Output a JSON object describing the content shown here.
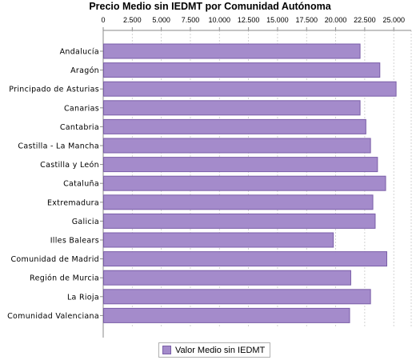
{
  "chart_data": {
    "type": "bar",
    "orientation": "horizontal",
    "title": "Precio Medio sin IEDMT por Comunidad Autónoma",
    "xlabel": "",
    "ylabel": "",
    "xlim": [
      0,
      26500
    ],
    "x_ticks": [
      0,
      2500,
      5000,
      7500,
      10000,
      12500,
      15000,
      17500,
      20000,
      22500,
      25000
    ],
    "x_tick_labels": [
      "0",
      "2.500",
      "5.000",
      "7.500",
      "10.000",
      "12.500",
      "15.000",
      "17.500",
      "20.000",
      "22.500",
      "25.000"
    ],
    "x_axis_position": "top",
    "grid": true,
    "legend_position": "bottom",
    "categories": [
      "Andalucía",
      "Aragón",
      "Principado de Asturias",
      "Canarias",
      "Cantabria",
      "Castilla - La Mancha",
      "Castilla y León",
      "Cataluña",
      "Extremadura",
      "Galicia",
      "Illes Balears",
      "Comunidad de Madrid",
      "Región de Murcia",
      "La Rioja",
      "Comunidad Valenciana"
    ],
    "series": [
      {
        "name": "Valor Medio sin IEDMT",
        "color": "#a48bcb",
        "values": [
          22100,
          23800,
          25200,
          22100,
          22600,
          23000,
          23600,
          24300,
          23200,
          23400,
          19800,
          24400,
          21300,
          23000,
          21200
        ]
      }
    ]
  }
}
